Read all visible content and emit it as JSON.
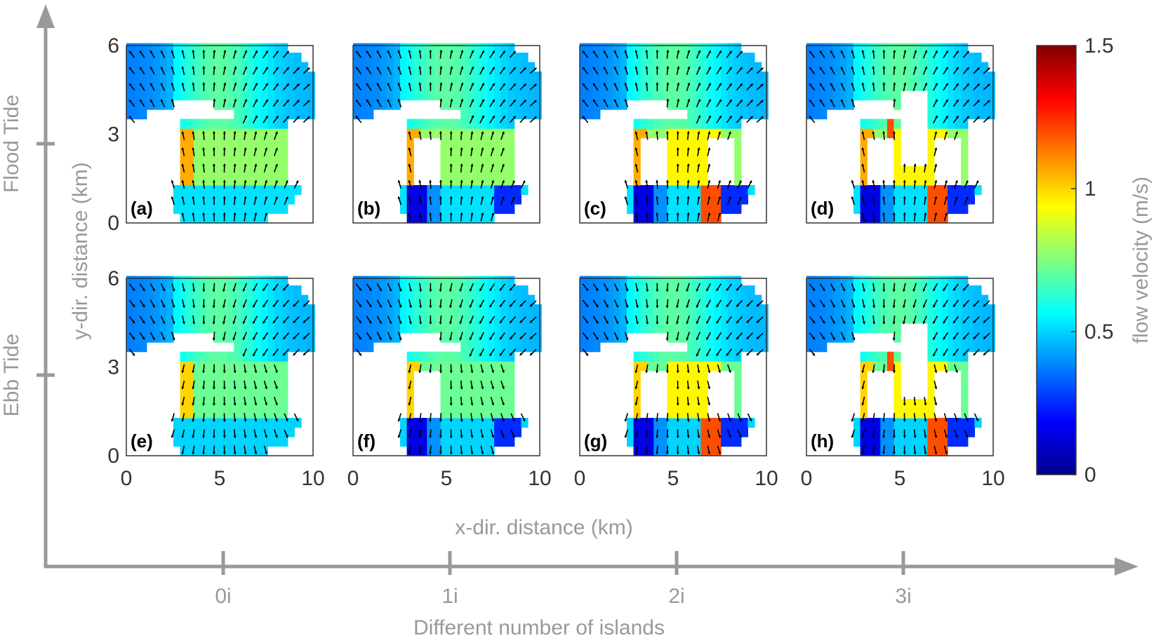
{
  "chart_data": {
    "type": "heatmap",
    "description_note": "",
    "panels": [
      {
        "label": "(a)",
        "tide": "Flood Tide",
        "islands": "0i",
        "island_count": 0
      },
      {
        "label": "(b)",
        "tide": "Flood Tide",
        "islands": "1i",
        "island_count": 1
      },
      {
        "label": "(c)",
        "tide": "Flood Tide",
        "islands": "2i",
        "island_count": 2
      },
      {
        "label": "(d)",
        "tide": "Flood Tide",
        "islands": "3i",
        "island_count": 3
      },
      {
        "label": "(e)",
        "tide": "Ebb Tide",
        "islands": "0i",
        "island_count": 0
      },
      {
        "label": "(f)",
        "tide": "Ebb Tide",
        "islands": "1i",
        "island_count": 1
      },
      {
        "label": "(g)",
        "tide": "Ebb Tide",
        "islands": "2i",
        "island_count": 2
      },
      {
        "label": "(h)",
        "tide": "Ebb Tide",
        "islands": "3i",
        "island_count": 3
      }
    ],
    "x_axis": {
      "label": "x-dir. distance (km)",
      "ticks": [
        "0",
        "5",
        "10"
      ],
      "range": [
        0,
        10
      ]
    },
    "y_axis": {
      "label": "y-dir. distance (km)",
      "ticks": [
        "0",
        "3",
        "6"
      ],
      "range": [
        0,
        6
      ]
    },
    "colorbar": {
      "label": "flow velocity (m/s)",
      "ticks": [
        "0",
        "0.5",
        "1",
        "1.5"
      ],
      "range": [
        0,
        1.5
      ],
      "colormap": "jet"
    },
    "outer_x_axis": {
      "label": "Different number of islands",
      "ticks": [
        "0i",
        "1i",
        "2i",
        "3i"
      ]
    },
    "outer_y_axis": {
      "ticks": [
        "Ebb Tide",
        "Flood Tide"
      ]
    }
  }
}
